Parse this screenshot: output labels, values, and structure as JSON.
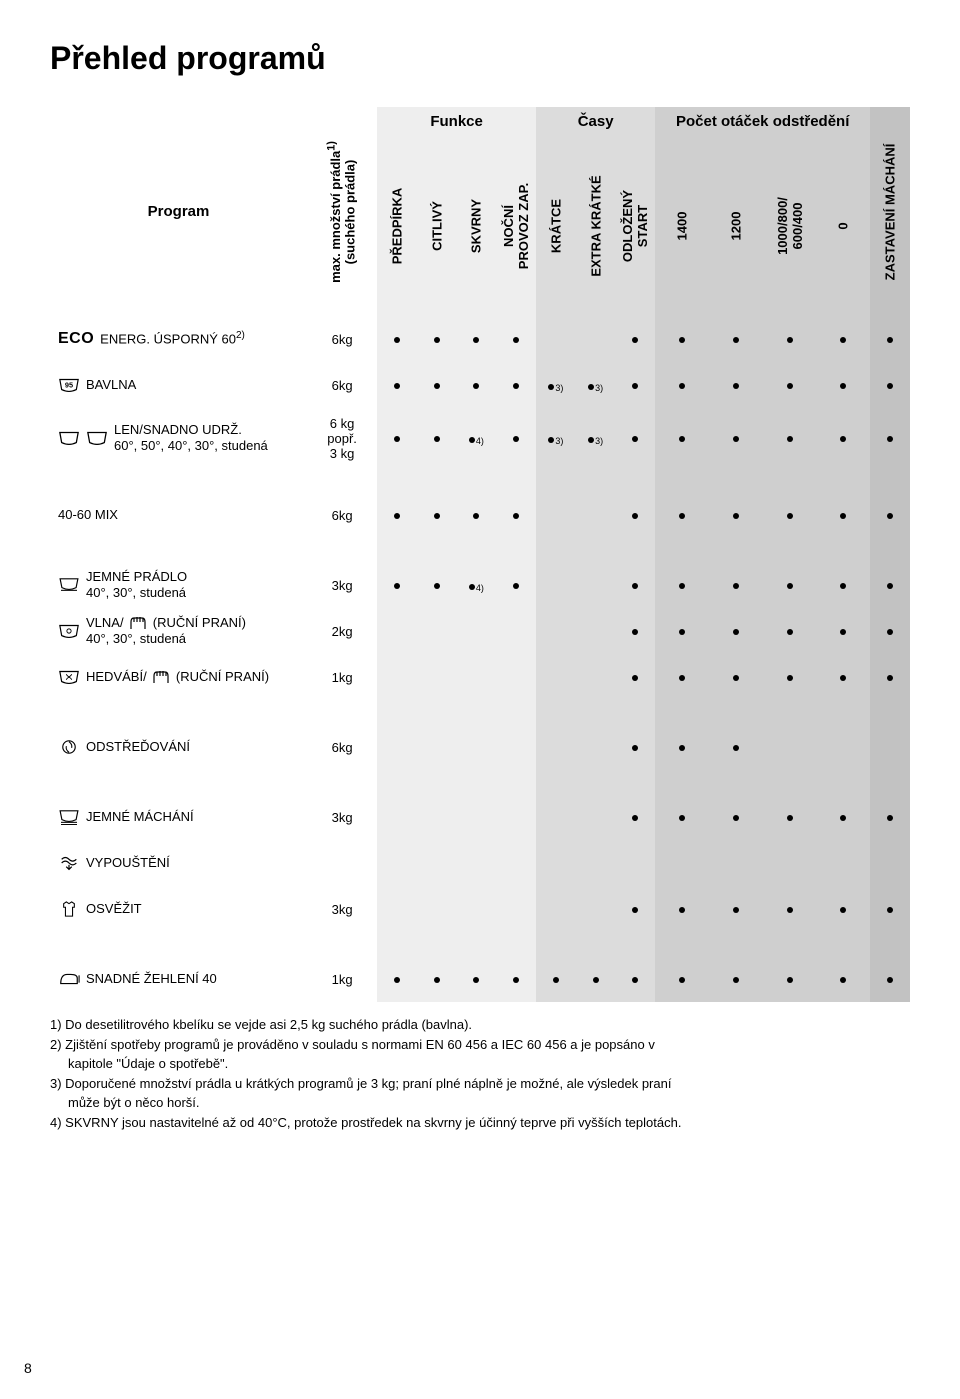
{
  "title": "Přehled programů",
  "page_number": "8",
  "colors": {
    "funkce_bg": "#eeeeee",
    "casy_bg": "#dcdcdc",
    "spin_bg": "#cfcfcf",
    "zm_bg": "#c2c2c2"
  },
  "headers": {
    "program": "Program",
    "max_load": "max. množství prádla",
    "max_load_note": "1)",
    "max_load_sub": "(suchého prádla)",
    "groups": {
      "funkce": "Funkce",
      "casy": "Časy",
      "spin": "Počet otáček odstředění"
    },
    "funkce_cols": [
      "PŘEDPÍRKA",
      "CITLIVÝ",
      "SKVRNY",
      "NOČNÍ\nPROVOZ ZAP."
    ],
    "casy_cols": [
      "KRÁTCE",
      "EXTRA KRÁTKÉ",
      "ODLOŽENÝ\nSTART"
    ],
    "spin_cols": [
      "1400",
      "1200",
      "1000/800/\n600/400",
      "0"
    ],
    "zm": "ZASTAVENÍ MÁCHÁNÍ"
  },
  "programs": [
    {
      "id": "eco",
      "icon": "eco",
      "name": "ENERG. ÚSPORNÝ 60",
      "name_sup": "2)",
      "load": "6kg",
      "cells": [
        "•",
        "•",
        "•",
        "•",
        "",
        "",
        "•",
        "•",
        "•",
        "•",
        "•",
        "•"
      ]
    },
    {
      "id": "bavlna",
      "icon": "cotton95",
      "name": "BAVLNA",
      "load": "6kg",
      "cells": [
        "•",
        "•",
        "•",
        "•",
        "•3)",
        "•3)",
        "•",
        "•",
        "•",
        "•",
        "•",
        "•"
      ]
    },
    {
      "id": "len",
      "icon": "tub-double",
      "name": "LEN/SNADNO UDRŽ.",
      "sub": "60°, 50°, 40°, 30°, studená",
      "load": "6 kg\npopř.\n3 kg",
      "cells": [
        "•",
        "•",
        "•4)",
        "•",
        "•3)",
        "•3)",
        "•",
        "•",
        "•",
        "•",
        "•",
        "•"
      ]
    },
    {
      "id": "mix",
      "icon": "",
      "name": "40-60 MIX",
      "load": "6kg",
      "cells": [
        "•",
        "•",
        "•",
        "•",
        "",
        "",
        "•",
        "•",
        "•",
        "•",
        "•",
        "•"
      ]
    },
    {
      "id": "jemne",
      "icon": "delicate",
      "name": "JEMNÉ PRÁDLO",
      "sub": "40°, 30°, studená",
      "load": "3kg",
      "cells": [
        "•",
        "•",
        "•4)",
        "•",
        "",
        "",
        "•",
        "•",
        "•",
        "•",
        "•",
        "•"
      ]
    },
    {
      "id": "vlna",
      "icon": "wool-hand",
      "name": "VLNA/      (RUČNÍ PRANÍ)",
      "icon2": "hand",
      "sub": "40°, 30°, studená",
      "load": "2kg",
      "cells": [
        "",
        "",
        "",
        "",
        "",
        "",
        "•",
        "•",
        "•",
        "•",
        "•",
        "•"
      ]
    },
    {
      "id": "hedvabi",
      "icon": "silk-hand",
      "name": "HEDVÁBÍ/    (RUČNÍ PRANÍ)",
      "icon2": "hand",
      "load": "1kg",
      "cells": [
        "",
        "",
        "",
        "",
        "",
        "",
        "•",
        "•",
        "•",
        "•",
        "•",
        "•"
      ]
    },
    {
      "id": "spin",
      "icon": "spin",
      "name": "ODSTŘEĎOVÁNÍ",
      "load": "6kg",
      "cells": [
        "",
        "",
        "",
        "",
        "",
        "",
        "•",
        "•",
        "•",
        "",
        "",
        ""
      ]
    },
    {
      "id": "rinse",
      "icon": "rinse",
      "name": "JEMNÉ MÁCHÁNÍ",
      "load": "3kg",
      "cells": [
        "",
        "",
        "",
        "",
        "",
        "",
        "•",
        "•",
        "•",
        "•",
        "•",
        "•"
      ]
    },
    {
      "id": "drain",
      "icon": "drain",
      "name": "VYPOUŠTĚNÍ",
      "load": "",
      "cells": [
        "",
        "",
        "",
        "",
        "",
        "",
        "",
        "",
        "",
        "",
        "",
        ""
      ]
    },
    {
      "id": "refresh",
      "icon": "shirt",
      "name": "OSVĚŽIT",
      "load": "3kg",
      "cells": [
        "",
        "",
        "",
        "",
        "",
        "",
        "•",
        "•",
        "•",
        "•",
        "•",
        "•"
      ]
    },
    {
      "id": "iron",
      "icon": "iron",
      "name": "SNADNÉ ŽEHLENÍ 40",
      "load": "1kg",
      "cells": [
        "•",
        "•",
        "•",
        "•",
        "•",
        "•",
        "•",
        "•",
        "•",
        "•",
        "•",
        "•"
      ]
    }
  ],
  "footnotes": [
    "1) Do desetilitrového kbelíku se vejde asi 2,5 kg suchého prádla (bavlna).",
    "2) Zjištění spotřeby programů je prováděno v souladu s normami EN 60 456 a IEC 60 456  a je popsáno v",
    "kapitole \"Údaje o spotřebě\".",
    "3) Doporučené množství prádla u krátkých programů je 3 kg; praní plné náplně je možné, ale výsledek praní",
    "může být o něco horší.",
    "4) SKVRNY jsou nastavitelné až od 40°C, protože prostředek na skvrny je účinný teprve při vyšších teplotách."
  ],
  "footnotes_indent": [
    false,
    false,
    true,
    false,
    true,
    false
  ]
}
